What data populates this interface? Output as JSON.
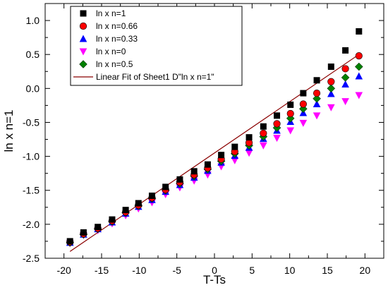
{
  "chart_data": {
    "type": "scatter",
    "title": "",
    "xlabel": "T-Ts",
    "ylabel": "ln x n=1",
    "xlim": [
      -22.5,
      22.5
    ],
    "ylim": [
      -2.5,
      1.25
    ],
    "xticks": [
      -20,
      -15,
      -10,
      -5,
      0,
      5,
      10,
      15,
      20
    ],
    "yticks": [
      -2.5,
      -2.0,
      -1.5,
      -1.0,
      -0.5,
      0.0,
      0.5,
      1.0
    ],
    "ytick_labels": [
      "-2.5",
      "-2.0",
      "-1.5",
      "-1.0",
      "-0.5",
      "0.0",
      "0.5",
      "1.0"
    ],
    "grid": false,
    "legend_position": "top-left",
    "x": [
      -19.2,
      -17.4,
      -15.5,
      -13.6,
      -11.8,
      -10.1,
      -8.3,
      -6.5,
      -4.6,
      -2.7,
      -0.9,
      0.9,
      2.7,
      4.6,
      6.5,
      8.3,
      10.1,
      11.8,
      13.6,
      15.5,
      17.4,
      19.2
    ],
    "series": [
      {
        "name": "ln x n=1",
        "marker": "square",
        "color": "#000000",
        "values": [
          -2.25,
          -2.12,
          -2.04,
          -1.93,
          -1.79,
          -1.69,
          -1.58,
          -1.45,
          -1.34,
          -1.22,
          -1.12,
          -0.98,
          -0.86,
          -0.72,
          -0.56,
          -0.4,
          -0.24,
          -0.07,
          0.12,
          0.32,
          0.56,
          0.84
        ]
      },
      {
        "name": "ln x n=0.66",
        "marker": "circle",
        "color": "#ff0000",
        "values": [
          -2.26,
          -2.14,
          -2.06,
          -1.95,
          -1.82,
          -1.72,
          -1.61,
          -1.49,
          -1.38,
          -1.27,
          -1.17,
          -1.04,
          -0.93,
          -0.8,
          -0.66,
          -0.52,
          -0.37,
          -0.23,
          -0.07,
          0.1,
          0.29,
          0.48
        ]
      },
      {
        "name": "ln x n=0.33",
        "marker": "triangle-up",
        "color": "#0000ff",
        "values": [
          -2.27,
          -2.15,
          -2.07,
          -1.97,
          -1.84,
          -1.74,
          -1.64,
          -1.52,
          -1.42,
          -1.31,
          -1.21,
          -1.09,
          -0.99,
          -0.87,
          -0.74,
          -0.62,
          -0.49,
          -0.36,
          -0.23,
          -0.08,
          0.06,
          0.18
        ]
      },
      {
        "name": "ln x n=0",
        "marker": "triangle-down",
        "color": "#ff00ff",
        "values": [
          -2.28,
          -2.16,
          -2.09,
          -1.99,
          -1.87,
          -1.77,
          -1.68,
          -1.56,
          -1.46,
          -1.36,
          -1.27,
          -1.15,
          -1.06,
          -0.95,
          -0.84,
          -0.73,
          -0.62,
          -0.51,
          -0.4,
          -0.28,
          -0.19,
          -0.1
        ]
      },
      {
        "name": "ln x n=0.5",
        "marker": "diamond",
        "color": "#008000",
        "values": [
          -2.27,
          -2.15,
          -2.07,
          -1.96,
          -1.83,
          -1.73,
          -1.62,
          -1.5,
          -1.4,
          -1.29,
          -1.19,
          -1.07,
          -0.96,
          -0.84,
          -0.71,
          -0.58,
          -0.44,
          -0.3,
          -0.15,
          0.0,
          0.16,
          0.32
        ]
      }
    ],
    "fit_line": {
      "name": "Linear Fit of Sheet1 D\"ln x n=1\"",
      "color": "#8b0000",
      "x": [
        -19.2,
        19.2
      ],
      "y": [
        -2.4,
        0.5
      ]
    }
  }
}
